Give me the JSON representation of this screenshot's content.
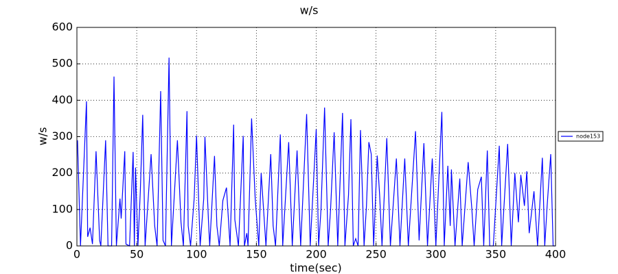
{
  "chart_data": {
    "type": "line",
    "title": "w/s",
    "xlabel": "time(sec)",
    "ylabel": "w/s",
    "x": [
      0.5,
      3,
      8,
      9,
      11,
      13,
      16,
      19,
      20,
      24,
      26,
      29,
      31,
      33,
      36,
      37,
      40,
      41,
      44,
      47,
      48,
      49,
      51,
      53,
      55,
      57,
      62,
      65,
      67,
      70,
      72,
      74,
      77,
      79,
      84,
      87,
      89,
      92,
      93,
      95,
      98,
      100,
      103,
      106,
      107,
      110,
      111,
      115,
      117,
      119,
      122,
      125,
      128,
      131,
      132,
      135,
      139,
      140,
      142,
      143,
      146,
      149,
      152,
      154,
      158,
      162,
      164,
      166,
      170,
      172,
      177,
      180,
      184,
      187,
      192,
      195,
      200,
      202,
      204,
      207,
      210,
      212,
      215,
      218,
      222,
      224,
      227,
      229,
      231,
      233,
      235,
      237,
      240,
      242,
      244,
      246,
      248,
      251,
      253,
      255,
      259,
      262,
      267,
      270,
      274,
      277,
      283,
      286,
      290,
      293,
      297,
      300,
      305,
      307,
      310,
      312,
      313,
      316,
      320,
      322,
      327,
      330,
      332,
      335,
      338,
      340,
      343,
      345,
      348,
      353,
      355,
      360,
      363,
      366,
      369,
      371,
      374,
      376,
      378,
      382,
      385,
      389,
      391,
      393,
      396,
      398,
      400
    ],
    "series": [
      {
        "name": "node153",
        "color": "#0000ff",
        "values": [
          290,
          0,
          397,
          25,
          50,
          5,
          260,
          15,
          0,
          290,
          0,
          0,
          465,
          0,
          130,
          75,
          260,
          5,
          0,
          258,
          0,
          215,
          0,
          150,
          360,
          0,
          252,
          55,
          0,
          425,
          15,
          0,
          517,
          0,
          290,
          65,
          0,
          370,
          55,
          0,
          130,
          303,
          0,
          130,
          300,
          65,
          0,
          247,
          55,
          0,
          125,
          160,
          0,
          333,
          72,
          0,
          302,
          0,
          35,
          0,
          350,
          130,
          0,
          200,
          0,
          252,
          55,
          0,
          306,
          0,
          285,
          0,
          262,
          0,
          362,
          0,
          320,
          0,
          100,
          380,
          0,
          100,
          312,
          0,
          365,
          0,
          140,
          348,
          0,
          20,
          0,
          318,
          0,
          110,
          285,
          252,
          0,
          248,
          140,
          0,
          296,
          0,
          240,
          0,
          240,
          0,
          315,
          15,
          282,
          0,
          240,
          0,
          368,
          0,
          220,
          55,
          210,
          0,
          185,
          0,
          230,
          105,
          0,
          155,
          190,
          0,
          262,
          0,
          0,
          275,
          0,
          280,
          0,
          200,
          65,
          195,
          110,
          205,
          35,
          150,
          0,
          242,
          0,
          110,
          252,
          0,
          0
        ]
      }
    ],
    "xlim": [
      0,
      400
    ],
    "ylim": [
      0,
      600
    ],
    "xticks": [
      0,
      50,
      100,
      150,
      200,
      250,
      300,
      350,
      400
    ],
    "yticks": [
      0,
      100,
      200,
      300,
      400,
      500,
      600
    ],
    "grid": true,
    "legend": "right"
  }
}
